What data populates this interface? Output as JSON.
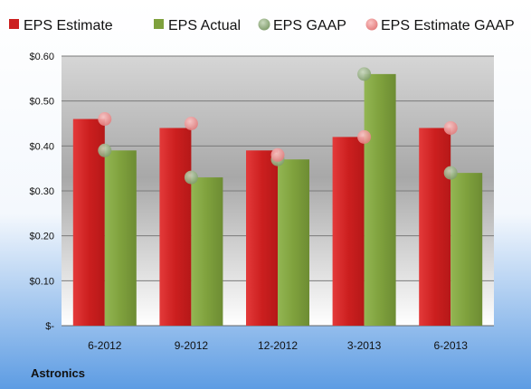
{
  "chart_data": {
    "type": "bar",
    "company": "Astronics",
    "categories": [
      "6-2012",
      "9-2012",
      "12-2012",
      "3-2013",
      "6-2013"
    ],
    "series": [
      {
        "name": "EPS Estimate",
        "kind": "bar",
        "color": "#cc1f1f",
        "values": [
          0.46,
          0.44,
          0.39,
          0.42,
          0.44
        ]
      },
      {
        "name": "EPS Actual",
        "kind": "bar",
        "color": "#7fa13d",
        "values": [
          0.39,
          0.33,
          0.37,
          0.56,
          0.34
        ]
      },
      {
        "name": "EPS GAAP",
        "kind": "marker",
        "color": "#8fae78",
        "values": [
          0.39,
          0.33,
          0.37,
          0.56,
          0.34
        ]
      },
      {
        "name": "EPS Estimate GAAP",
        "kind": "marker",
        "color": "#ef8f8f",
        "values": [
          0.46,
          0.45,
          0.38,
          0.42,
          0.44
        ]
      }
    ],
    "ylim": [
      0,
      0.6
    ],
    "yticks": [
      0,
      0.1,
      0.2,
      0.3,
      0.4,
      0.5,
      0.6
    ],
    "ytick_labels": [
      "$-",
      "$0.10",
      "$0.20",
      "$0.30",
      "$0.40",
      "$0.50",
      "$0.60"
    ],
    "grid": true,
    "legend_position": "top"
  }
}
